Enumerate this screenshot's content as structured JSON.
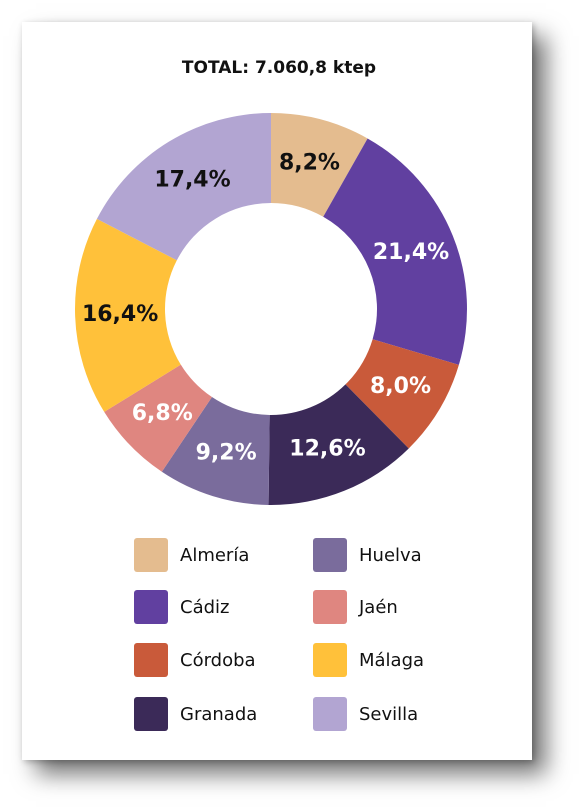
{
  "chart_data": {
    "type": "pie",
    "title": "TOTAL: 7.060,8 ktep",
    "donut": true,
    "slices": [
      {
        "name": "Almería",
        "value": 8.2,
        "label": "8,2%",
        "color": "#E4BC8F",
        "label_color": "#111111"
      },
      {
        "name": "Cádiz",
        "value": 21.4,
        "label": "21,4%",
        "color": "#6140A0",
        "label_color": "#ffffff"
      },
      {
        "name": "Córdoba",
        "value": 8.0,
        "label": "8,0%",
        "color": "#C95A3A",
        "label_color": "#ffffff"
      },
      {
        "name": "Granada",
        "value": 12.6,
        "label": "12,6%",
        "color": "#3B2A58",
        "label_color": "#ffffff"
      },
      {
        "name": "Huelva",
        "value": 9.2,
        "label": "9,2%",
        "color": "#7A6C9C",
        "label_color": "#ffffff"
      },
      {
        "name": "Jaén",
        "value": 6.8,
        "label": "6,8%",
        "color": "#DF8680",
        "label_color": "#ffffff"
      },
      {
        "name": "Málaga",
        "value": 16.4,
        "label": "16,4%",
        "color": "#FFC13A",
        "label_color": "#111111"
      },
      {
        "name": "Sevilla",
        "value": 17.4,
        "label": "17,4%",
        "color": "#B2A5D2",
        "label_color": "#111111"
      }
    ],
    "legend": {
      "placement": "bottom",
      "columns": [
        [
          "Almería",
          "Cádiz",
          "Córdoba",
          "Granada"
        ],
        [
          "Huelva",
          "Jaén",
          "Málaga",
          "Sevilla"
        ]
      ]
    }
  }
}
